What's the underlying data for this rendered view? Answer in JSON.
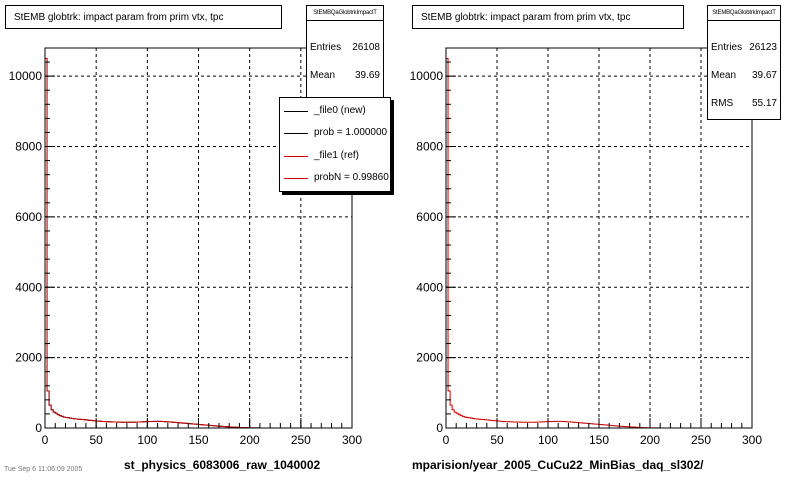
{
  "chart_data": [
    {
      "type": "histogram",
      "title": "StEMB globtrk: impact param from prim vtx, tpc",
      "xlim": [
        0,
        300
      ],
      "ylim": [
        0,
        10800
      ],
      "x_ticks": [
        0,
        50,
        100,
        150,
        200,
        250,
        300
      ],
      "y_ticks": [
        0,
        2000,
        4000,
        6000,
        8000,
        10000
      ],
      "grid": true,
      "stats": {
        "header": "StEMBQaGlobtrkImpactT",
        "entries_label": "Entries",
        "entries": "26108",
        "mean_label": "Mean",
        "mean": "39.69"
      },
      "legend": {
        "placement": "top-right",
        "entries": [
          {
            "label": "_file0 (new)",
            "color": "#000000"
          },
          {
            "label": "prob = 1.000000",
            "color": "#000000"
          },
          {
            "label": "_file1 (ref)",
            "color": "#cc0000"
          },
          {
            "label": "probN = 0.99860",
            "color": "#cc0000"
          }
        ]
      },
      "series": [
        {
          "color": "#000000",
          "bin_width": 2,
          "values": [
            10500,
            1050,
            650,
            520,
            450,
            420,
            380,
            350,
            330,
            310,
            300,
            290,
            280,
            270,
            260,
            255,
            250,
            245,
            240,
            235,
            230,
            220,
            215,
            210,
            205,
            200,
            195,
            190,
            185,
            180,
            178,
            176,
            174,
            172,
            170,
            168,
            166,
            165,
            164,
            163,
            162,
            162,
            163,
            165,
            167,
            170,
            172,
            175,
            178,
            180,
            182,
            184,
            186,
            188,
            190,
            190,
            188,
            185,
            182,
            178,
            175,
            170,
            165,
            160,
            155,
            150,
            145,
            140,
            135,
            130,
            125,
            120,
            115,
            110,
            105,
            100,
            95,
            90,
            85,
            80,
            75,
            70,
            65,
            60,
            55,
            50,
            46,
            42,
            38,
            34,
            30,
            27,
            24,
            21,
            18,
            15,
            12,
            10,
            8,
            6,
            5,
            4,
            3,
            2,
            2,
            1,
            1,
            1,
            1,
            1,
            1,
            1,
            0,
            0,
            0,
            0,
            0,
            0,
            0,
            0,
            0,
            0,
            0,
            0,
            0,
            0,
            0,
            0,
            0,
            0,
            0,
            0,
            0,
            0,
            0,
            0,
            0,
            0,
            0,
            0,
            0,
            0,
            0,
            0,
            0,
            0,
            0,
            0,
            0,
            0
          ]
        },
        {
          "color": "#cc0000",
          "bin_width": 2,
          "values": [
            10500,
            1050,
            650,
            520,
            450,
            420,
            380,
            350,
            330,
            310,
            300,
            290,
            280,
            270,
            260,
            255,
            250,
            245,
            240,
            235,
            230,
            220,
            215,
            210,
            205,
            200,
            195,
            190,
            185,
            180,
            178,
            176,
            174,
            172,
            170,
            168,
            166,
            165,
            164,
            163,
            162,
            162,
            163,
            165,
            167,
            170,
            172,
            175,
            178,
            180,
            182,
            184,
            186,
            188,
            190,
            190,
            188,
            185,
            182,
            178,
            175,
            170,
            165,
            160,
            155,
            150,
            145,
            140,
            135,
            130,
            125,
            120,
            115,
            110,
            105,
            100,
            95,
            90,
            85,
            80,
            75,
            70,
            65,
            60,
            55,
            50,
            46,
            42,
            38,
            34,
            30,
            27,
            24,
            21,
            18,
            15,
            12,
            10,
            8,
            6,
            5,
            4,
            3,
            2,
            2,
            1,
            1,
            1,
            1,
            1,
            1,
            1,
            0,
            0,
            0,
            0,
            0,
            0,
            0,
            0,
            0,
            0,
            0,
            0,
            0,
            0,
            0,
            0,
            0,
            0,
            0,
            0,
            0,
            0,
            0,
            0,
            0,
            0,
            0,
            0,
            0,
            0,
            0,
            0,
            0,
            0,
            0,
            0,
            0,
            0
          ]
        }
      ],
      "bottom_label": "st_physics_6083006_raw_1040002"
    },
    {
      "type": "histogram",
      "title": "StEMB globtrk: impact param from prim vtx, tpc",
      "xlim": [
        0,
        300
      ],
      "ylim": [
        0,
        10800
      ],
      "x_ticks": [
        0,
        50,
        100,
        150,
        200,
        250,
        300
      ],
      "y_ticks": [
        0,
        2000,
        4000,
        6000,
        8000,
        10000
      ],
      "grid": true,
      "stats": {
        "header": "StEMBQaGlobtrkImpactT",
        "entries_label": "Entries",
        "entries": "26123",
        "mean_label": "Mean",
        "mean": "39.67",
        "rms_label": "RMS",
        "rms": "55.17"
      },
      "series": [
        {
          "color": "#cc0000",
          "bin_width": 2,
          "values": [
            10500,
            1050,
            650,
            520,
            450,
            420,
            380,
            350,
            330,
            310,
            300,
            290,
            280,
            270,
            260,
            255,
            250,
            245,
            240,
            235,
            230,
            220,
            215,
            210,
            205,
            200,
            195,
            190,
            185,
            180,
            178,
            176,
            174,
            172,
            170,
            168,
            166,
            165,
            164,
            163,
            162,
            162,
            163,
            165,
            167,
            170,
            172,
            175,
            178,
            180,
            182,
            184,
            186,
            188,
            190,
            190,
            188,
            185,
            182,
            178,
            175,
            170,
            165,
            160,
            155,
            150,
            145,
            140,
            135,
            130,
            125,
            120,
            115,
            110,
            105,
            100,
            95,
            90,
            85,
            80,
            75,
            70,
            65,
            60,
            55,
            50,
            46,
            42,
            38,
            34,
            30,
            27,
            24,
            21,
            18,
            15,
            12,
            10,
            8,
            6,
            5,
            4,
            3,
            2,
            2,
            1,
            1,
            1,
            1,
            1,
            1,
            1,
            0,
            0,
            0,
            0,
            0,
            0,
            0,
            0,
            0,
            0,
            0,
            0,
            0,
            0,
            0,
            0,
            0,
            0,
            0,
            0,
            0,
            0,
            0,
            0,
            0,
            0,
            0,
            0,
            0,
            0,
            0,
            0,
            0,
            0,
            0,
            0,
            0,
            0
          ]
        }
      ],
      "bottom_label": "mparision/year_2005_CuCu22_MinBias_daq_sl302/"
    }
  ],
  "footer_text": "Tue Sep  6  11:06:09 2005"
}
